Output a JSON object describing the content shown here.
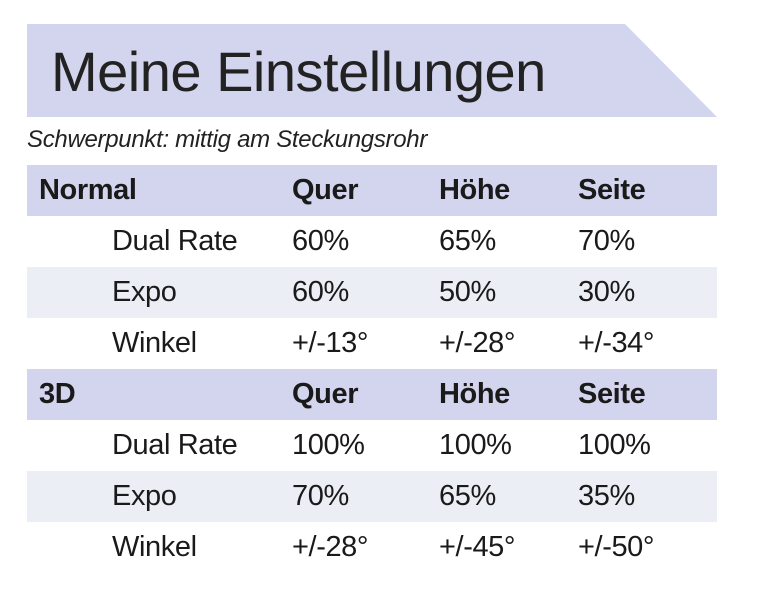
{
  "title": "Meine Einstellungen",
  "subtitle": "Schwerpunkt:  mittig am Steckungsrohr",
  "sections": [
    {
      "header": [
        "Normal",
        "Quer",
        "Höhe",
        "Seite"
      ],
      "rows": [
        {
          "label": "Dual Rate",
          "values": [
            "60%",
            "65%",
            "70%"
          ]
        },
        {
          "label": "Expo",
          "values": [
            "60%",
            "50%",
            "30%"
          ]
        },
        {
          "label": "Winkel",
          "values": [
            "+/-13°",
            "+/-28°",
            "+/-34°"
          ]
        }
      ]
    },
    {
      "header": [
        "3D",
        "Quer",
        "Höhe",
        "Seite"
      ],
      "rows": [
        {
          "label": "Dual Rate",
          "values": [
            "100%",
            "100%",
            "100%"
          ]
        },
        {
          "label": "Expo",
          "values": [
            "70%",
            "65%",
            "35%"
          ]
        },
        {
          "label": "Winkel",
          "values": [
            "+/-28°",
            "+/-45°",
            "+/-50°"
          ]
        }
      ]
    }
  ],
  "colors": {
    "header_bg": "#d3d4ee",
    "alt_row_bg": "#eceef5",
    "text": "#1a1a1a"
  }
}
